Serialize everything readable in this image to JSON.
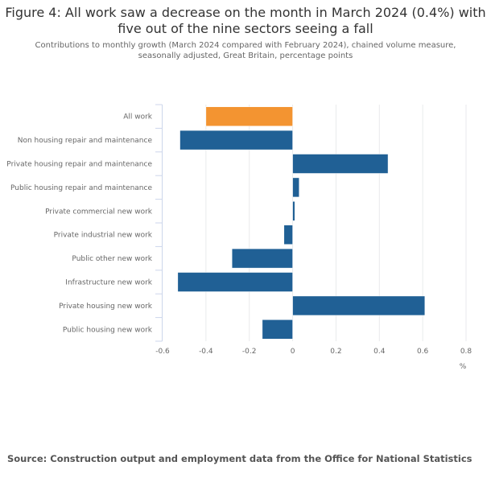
{
  "title_line1": "Figure 4: All work saw a decrease on the month in March 2024 (0.4%) with",
  "title_line2": "five out of the nine sectors seeing a fall",
  "subtitle_line1": "Contributions to monthly growth (March 2024 compared with February 2024), chained volume measure,",
  "subtitle_line2": "seasonally adjusted, Great Britain, percentage points",
  "source": "Source: Construction output and employment data from the Office for National Statistics",
  "colors": {
    "highlight": "#f39431",
    "bar": "#206095",
    "grid": "#e9eaec",
    "axis": "#ccd6eb"
  },
  "chart_data": {
    "type": "bar",
    "orientation": "horizontal",
    "title": "Figure 4: All work saw a decrease on the month in March 2024 (0.4%) with five out of the nine sectors seeing a fall",
    "xlabel": "%",
    "ylabel": "",
    "xlim": [
      -0.6,
      0.8
    ],
    "xticks": [
      -0.6,
      -0.4,
      -0.2,
      0,
      0.2,
      0.4,
      0.6,
      0.8
    ],
    "xtick_labels": [
      "-0.6",
      "-0.4",
      "-0.2",
      "0",
      "0.2",
      "0.4",
      "0.6",
      "0.8"
    ],
    "grid": true,
    "categories": [
      "All work",
      "Non housing repair and maintenance",
      "Private housing repair and maintenance",
      "Public housing repair and maintenance",
      "Private commercial new work",
      "Private industrial new work",
      "Public other new work",
      "Infrastructure new work",
      "Private housing new work",
      "Public housing new work"
    ],
    "values": [
      -0.4,
      -0.52,
      0.44,
      0.03,
      0.01,
      -0.04,
      -0.28,
      -0.53,
      0.61,
      -0.14
    ],
    "highlight_index": 0
  }
}
